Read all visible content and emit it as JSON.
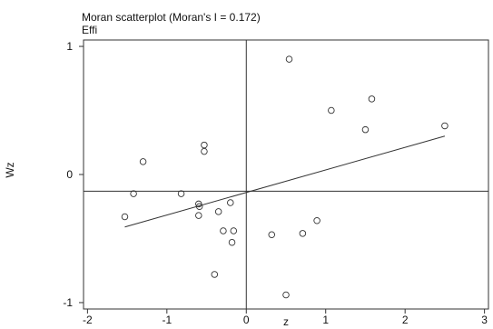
{
  "chart_data": {
    "type": "scatter",
    "title": "Moran scatterplot (Moran's I = 0.172)",
    "subtitle": "Effi",
    "xlabel": "z",
    "ylabel": "Wz",
    "xlim": [
      -2.05,
      3.05
    ],
    "ylim": [
      -1.05,
      1.05
    ],
    "xticks": [
      -2,
      -1,
      0,
      1,
      2,
      3
    ],
    "yticks": [
      -1,
      0,
      1
    ],
    "grid": false,
    "reference_lines": {
      "x": 0,
      "y": -0.13
    },
    "fit_line": {
      "x": [
        -1.53,
        2.5
      ],
      "y": [
        -0.41,
        0.3
      ]
    },
    "points": [
      {
        "x": -1.53,
        "y": -0.33
      },
      {
        "x": -1.42,
        "y": -0.15
      },
      {
        "x": -1.3,
        "y": 0.1
      },
      {
        "x": -0.82,
        "y": -0.15
      },
      {
        "x": -0.6,
        "y": -0.23
      },
      {
        "x": -0.59,
        "y": -0.25
      },
      {
        "x": -0.6,
        "y": -0.32
      },
      {
        "x": -0.53,
        "y": 0.23
      },
      {
        "x": -0.53,
        "y": 0.18
      },
      {
        "x": -0.35,
        "y": -0.29
      },
      {
        "x": -0.29,
        "y": -0.44
      },
      {
        "x": -0.2,
        "y": -0.22
      },
      {
        "x": -0.16,
        "y": -0.44
      },
      {
        "x": -0.18,
        "y": -0.53
      },
      {
        "x": -0.4,
        "y": -0.78
      },
      {
        "x": 0.32,
        "y": -0.47
      },
      {
        "x": 0.5,
        "y": -0.94
      },
      {
        "x": 0.54,
        "y": 0.9
      },
      {
        "x": 0.71,
        "y": -0.46
      },
      {
        "x": 0.89,
        "y": -0.36
      },
      {
        "x": 1.07,
        "y": 0.5
      },
      {
        "x": 1.5,
        "y": 0.35
      },
      {
        "x": 1.58,
        "y": 0.59
      },
      {
        "x": 2.5,
        "y": 0.38
      }
    ]
  }
}
